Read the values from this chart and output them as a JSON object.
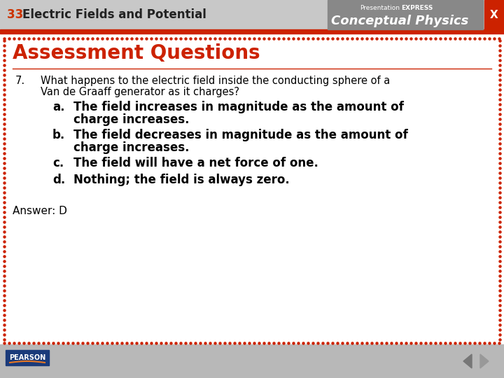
{
  "title_bar_bg": "#c8c8c8",
  "title_bar_text_color_number": "#cc3300",
  "title_bar_text_color_rest": "#222222",
  "header_red_bar": "#cc2200",
  "cp_box_color": "#888888",
  "presentation_text": "Presentation",
  "express_text": "EXPRESS",
  "conceptual_physics": "Conceptual Physics",
  "x_button_bg": "#cc2200",
  "x_button_color": "#ffffff",
  "section_title": "Assessment Questions",
  "section_title_color": "#cc2200",
  "question_number": "7.",
  "question_line1": "What happens to the electric field inside the conducting sphere of a",
  "question_line2": "Van de Graaff generator as it charges?",
  "opt_a_label": "a.",
  "opt_a_line1": "The field increases in magnitude as the amount of",
  "opt_a_line2": "charge increases.",
  "opt_b_label": "b.",
  "opt_b_line1": "The field decreases in magnitude as the amount of",
  "opt_b_line2": "charge increases.",
  "opt_c_label": "c.",
  "opt_c_text": "The field will have a net force of one.",
  "opt_d_label": "d.",
  "opt_d_text": "Nothing; the field is always zero.",
  "answer": "Answer: D",
  "main_bg": "#ffffff",
  "border_dot_color": "#cc2200",
  "footer_bg": "#b8b8b8",
  "text_color": "#000000",
  "pearson_box_color": "#1a3a7a",
  "pearson_text": "PEARSON",
  "pearson_arc_color": "#e87722"
}
